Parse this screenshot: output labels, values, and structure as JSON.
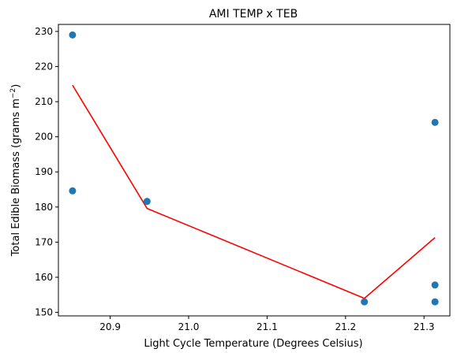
{
  "chart_data": {
    "type": "scatter",
    "title": "AMI TEMP x TEB",
    "xlabel": "Light Cycle Temperature (Degrees Celsius)",
    "ylabel_main": "Total Edible Biomass (grams m",
    "ylabel_sup": "−2",
    "ylabel_end": ")",
    "xlim": [
      20.834,
      21.333
    ],
    "ylim": [
      149.0,
      232.0
    ],
    "x_ticks": [
      20.9,
      21.0,
      21.1,
      21.2,
      21.3
    ],
    "x_tick_labels": [
      "20.9",
      "21.0",
      "21.1",
      "21.2",
      "21.3"
    ],
    "y_ticks": [
      150,
      160,
      170,
      180,
      190,
      200,
      210,
      220,
      230
    ],
    "y_tick_labels": [
      "150",
      "160",
      "170",
      "180",
      "190",
      "200",
      "210",
      "220",
      "230"
    ],
    "grid": false,
    "colors": {
      "points": "#1f77b4",
      "fit_line": "#ff0000"
    },
    "series": [
      {
        "kind": "scatter",
        "points": [
          {
            "x": 20.852,
            "y": 229.0
          },
          {
            "x": 20.852,
            "y": 184.6
          },
          {
            "x": 20.947,
            "y": 181.6
          },
          {
            "x": 21.224,
            "y": 153.0
          },
          {
            "x": 21.314,
            "y": 204.1
          },
          {
            "x": 21.314,
            "y": 157.8
          },
          {
            "x": 21.314,
            "y": 153.0
          }
        ]
      },
      {
        "kind": "line",
        "points": [
          {
            "x": 20.852,
            "y": 214.7
          },
          {
            "x": 20.947,
            "y": 179.6
          },
          {
            "x": 21.224,
            "y": 154.0
          },
          {
            "x": 21.314,
            "y": 171.3
          }
        ]
      }
    ]
  }
}
